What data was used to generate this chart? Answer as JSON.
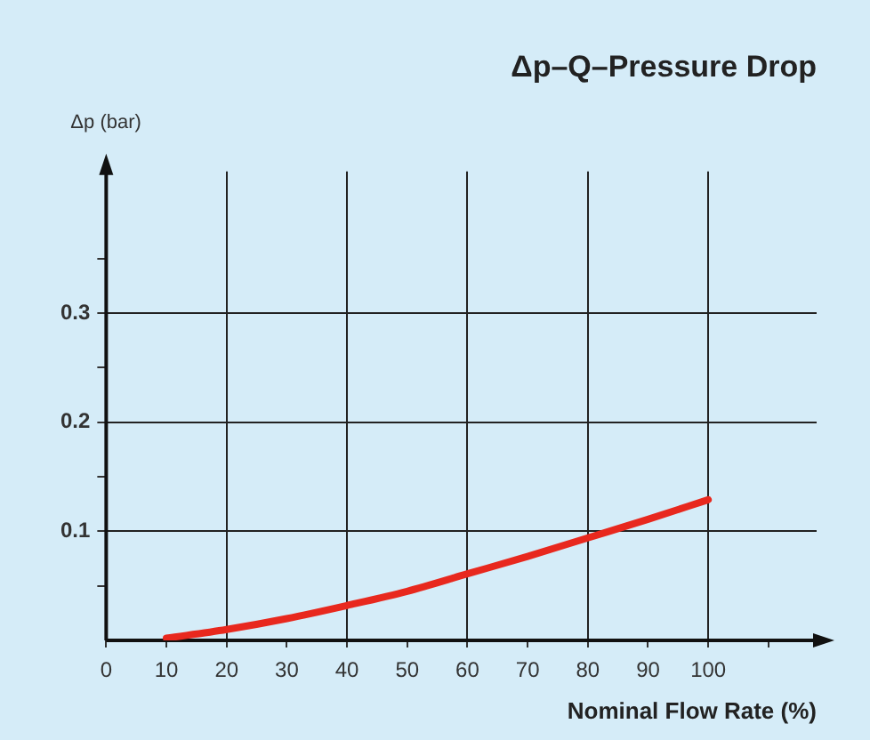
{
  "chart_data": {
    "type": "line",
    "title": "Δp–Q–Pressure Drop",
    "xlabel": "Nominal Flow Rate (%)",
    "ylabel": "Δp (bar)",
    "x": [
      10,
      20,
      30,
      40,
      50,
      60,
      70,
      80,
      90,
      100
    ],
    "series": [
      {
        "color": "#e8281e",
        "values": [
          0.002,
          0.01,
          0.02,
          0.032,
          0.045,
          0.061,
          0.077,
          0.094,
          0.111,
          0.129
        ]
      }
    ],
    "xlim": [
      0,
      118
    ],
    "ylim": [
      0,
      0.43
    ],
    "xticks": [
      0,
      10,
      20,
      30,
      40,
      50,
      60,
      70,
      80,
      90,
      100,
      {
        "value": 110,
        "label": null
      }
    ],
    "yticks": [
      {
        "value": 0.05,
        "label": null
      },
      0.1,
      {
        "value": 0.15,
        "label": null
      },
      0.2,
      {
        "value": 0.25,
        "label": null
      },
      0.3,
      {
        "value": 0.35,
        "label": null
      }
    ],
    "grid": true,
    "legend": false,
    "marker": "none",
    "line_style": "solid"
  }
}
